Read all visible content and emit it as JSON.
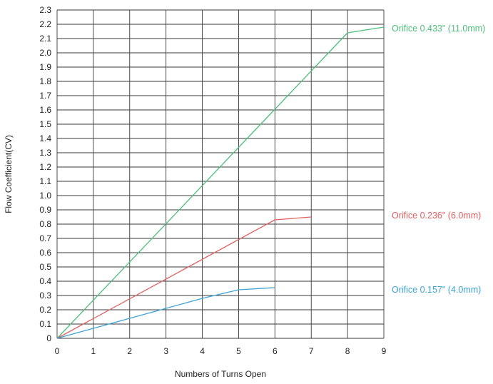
{
  "chart_data": {
    "type": "line",
    "title": "",
    "xlabel": "Numbers of Turns Open",
    "ylabel": "Flow Coefficient(CV)",
    "xlim": [
      0,
      9
    ],
    "ylim": [
      0,
      2.3
    ],
    "x_ticks": [
      0,
      1,
      2,
      3,
      4,
      5,
      6,
      7,
      8,
      9
    ],
    "x_tick_labels": [
      "0",
      "1",
      "2",
      "3",
      "4",
      "5",
      "6",
      "7",
      "8",
      "9"
    ],
    "y_ticks": [
      0,
      0.1,
      0.2,
      0.3,
      0.4,
      0.5,
      0.6,
      0.7,
      0.8,
      0.9,
      1.0,
      1.1,
      1.2,
      1.3,
      1.4,
      1.5,
      1.6,
      1.7,
      1.8,
      1.9,
      2.0,
      2.1,
      2.2,
      2.3
    ],
    "y_tick_labels": [
      "0",
      "0.1",
      "0.2",
      "0.3",
      "0.4",
      "0.5",
      "0.6",
      "0.7",
      "0.8",
      "0.9",
      "1.0",
      "1.1",
      "1.2",
      "1.3",
      "1.4",
      "1.5",
      "1.6",
      "1.7",
      "1.8",
      "1.9",
      "2.0",
      "2.1",
      "2.2",
      "2.3"
    ],
    "grid": true,
    "legend": "inline labels at right end of each line",
    "series": [
      {
        "name": "Orifice 0.433\" (11.0mm)",
        "color": "#4dbf7a",
        "x": [
          0,
          8,
          9
        ],
        "y": [
          0,
          2.14,
          2.18
        ]
      },
      {
        "name": "Orifice 0.236\" (6.0mm)",
        "color": "#e0605e",
        "x": [
          0,
          6,
          7
        ],
        "y": [
          0,
          0.83,
          0.85
        ]
      },
      {
        "name": "Orifice 0.157\" (4.0mm)",
        "color": "#3fa3d6",
        "x": [
          0,
          1,
          2,
          3,
          4,
          5,
          6
        ],
        "y": [
          0,
          0.07,
          0.14,
          0.21,
          0.28,
          0.34,
          0.355
        ]
      }
    ]
  }
}
